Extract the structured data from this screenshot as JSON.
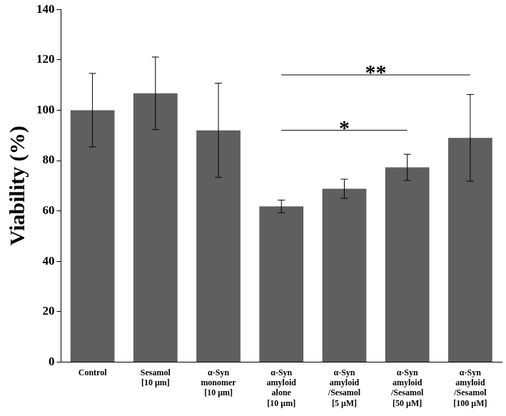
{
  "chart_data": {
    "type": "bar",
    "y_label": "Viability (%)",
    "categories": [
      "Control",
      "Sesamol\n[10 μm]",
      "α-Syn\nmonomer\n[10 μm]",
      "α-Syn\namyloid\nalone\n[10 μm]",
      "α-Syn\namyloid\n/Sesamol\n[5 μM]",
      "α-Syn\namyloid\n/Sesamol\n[50 μM]",
      "α-Syn\namyloid\n/Sesamol\n[100 μM]"
    ],
    "values": [
      100,
      106.7,
      92,
      61.8,
      68.8,
      77.3,
      89
    ],
    "errors": [
      14.6,
      14.4,
      18.7,
      2.5,
      3.8,
      5.2,
      17.2
    ],
    "color": "#5f5f5f",
    "ylim": [
      0,
      140
    ],
    "yticks": [
      0,
      20,
      40,
      60,
      80,
      100,
      120,
      140
    ],
    "grid": false,
    "annotations": [
      {
        "text": "**",
        "start": "α-Syn\namyloid\nalone\n[10 μm]",
        "end": "α-Syn\namyloid\n/Sesamol\n[100 μM]",
        "y": 114
      },
      {
        "text": "*",
        "start": "α-Syn\namyloid\nalone\n[10 μm]",
        "end": "α-Syn\namyloid\n/Sesamol\n[50 μM]",
        "y": 92
      }
    ]
  }
}
